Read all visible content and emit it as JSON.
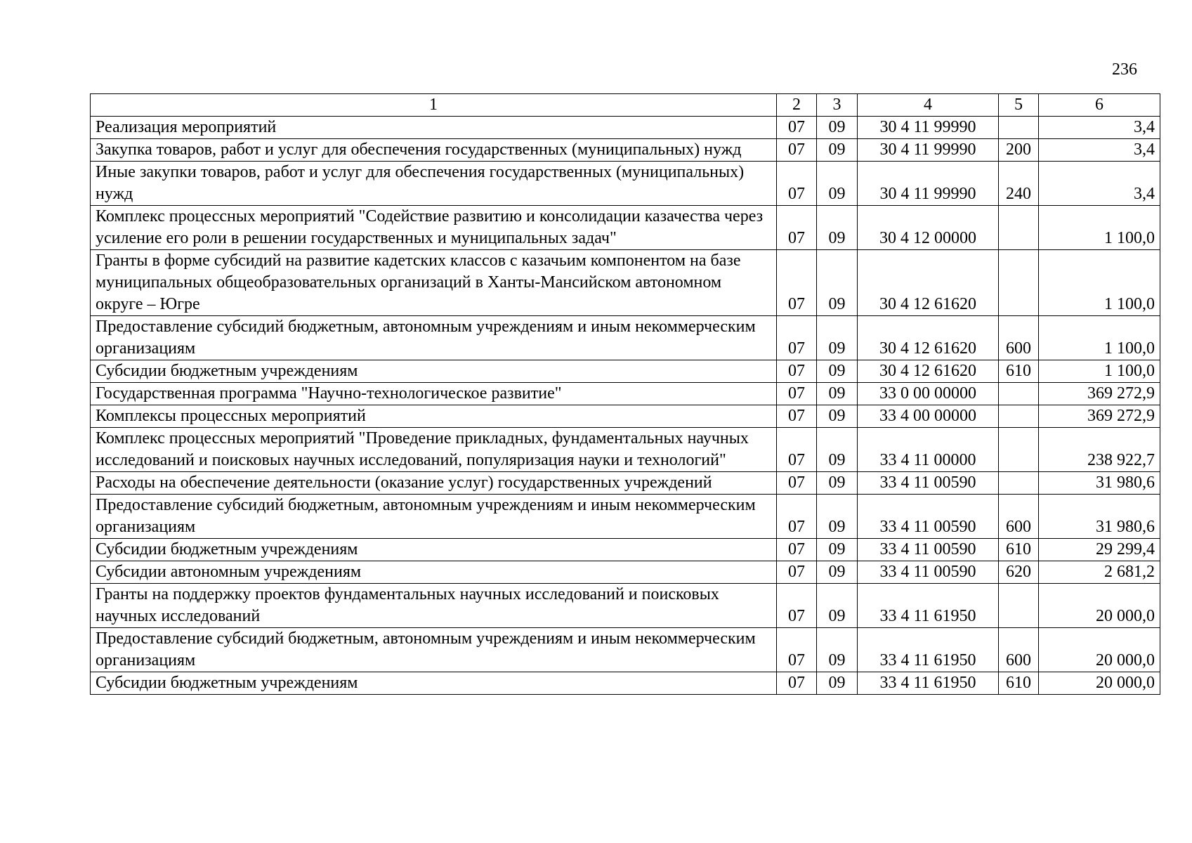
{
  "page_number": "236",
  "table": {
    "headers": [
      "1",
      "2",
      "3",
      "4",
      "5",
      "6"
    ],
    "rows": [
      {
        "name": "Реализация мероприятий",
        "c2": "07",
        "c3": "09",
        "c4": "30 4 11 99990",
        "c5": "",
        "c6": "3,4"
      },
      {
        "name": "Закупка товаров, работ и услуг для обеспечения государственных (муниципальных) нужд",
        "c2": "07",
        "c3": "09",
        "c4": "30 4 11 99990",
        "c5": "200",
        "c6": "3,4"
      },
      {
        "name": "Иные закупки товаров, работ и услуг для обеспечения государственных (муниципальных) нужд",
        "c2": "07",
        "c3": "09",
        "c4": "30 4 11 99990",
        "c5": "240",
        "c6": "3,4"
      },
      {
        "name": "Комплекс процессных мероприятий \"Содействие развитию и консолидации казачества через усиление его роли в решении государственных и муниципальных задач\"",
        "c2": "07",
        "c3": "09",
        "c4": "30 4 12 00000",
        "c5": "",
        "c6": "1 100,0"
      },
      {
        "name": "Гранты в форме субсидий на развитие кадетских классов с казачьим компонентом на базе муниципальных общеобразовательных организаций в Ханты-Мансийском автономном округе – Югре",
        "c2": "07",
        "c3": "09",
        "c4": "30 4 12 61620",
        "c5": "",
        "c6": "1 100,0"
      },
      {
        "name": "Предоставление субсидий бюджетным, автономным учреждениям и иным некоммерческим организациям",
        "c2": "07",
        "c3": "09",
        "c4": "30 4 12 61620",
        "c5": "600",
        "c6": "1 100,0"
      },
      {
        "name": "Субсидии бюджетным учреждениям",
        "c2": "07",
        "c3": "09",
        "c4": "30 4 12 61620",
        "c5": "610",
        "c6": "1 100,0"
      },
      {
        "name": "Государственная программа \"Научно-технологическое развитие\"",
        "c2": "07",
        "c3": "09",
        "c4": "33 0 00 00000",
        "c5": "",
        "c6": "369 272,9"
      },
      {
        "name": "Комплексы процессных мероприятий",
        "c2": "07",
        "c3": "09",
        "c4": "33 4 00 00000",
        "c5": "",
        "c6": "369 272,9"
      },
      {
        "name": "Комплекс процессных мероприятий \"Проведение прикладных, фундаментальных научных исследований и поисковых научных исследований, популяризация науки и технологий\"",
        "c2": "07",
        "c3": "09",
        "c4": "33 4 11 00000",
        "c5": "",
        "c6": "238 922,7"
      },
      {
        "name": "Расходы на обеспечение деятельности (оказание услуг) государственных учреждений",
        "c2": "07",
        "c3": "09",
        "c4": "33 4 11 00590",
        "c5": "",
        "c6": "31 980,6"
      },
      {
        "name": "Предоставление субсидий бюджетным, автономным учреждениям и иным некоммерческим организациям",
        "c2": "07",
        "c3": "09",
        "c4": "33 4 11 00590",
        "c5": "600",
        "c6": "31 980,6"
      },
      {
        "name": "Субсидии бюджетным учреждениям",
        "c2": "07",
        "c3": "09",
        "c4": "33 4 11 00590",
        "c5": "610",
        "c6": "29 299,4"
      },
      {
        "name": "Субсидии автономным учреждениям",
        "c2": "07",
        "c3": "09",
        "c4": "33 4 11 00590",
        "c5": "620",
        "c6": "2 681,2"
      },
      {
        "name": "Гранты на поддержку проектов фундаментальных научных исследований и поисковых научных исследований",
        "c2": "07",
        "c3": "09",
        "c4": "33 4 11 61950",
        "c5": "",
        "c6": "20 000,0"
      },
      {
        "name": "Предоставление субсидий бюджетным, автономным учреждениям и иным некоммерческим организациям",
        "c2": "07",
        "c3": "09",
        "c4": "33 4 11 61950",
        "c5": "600",
        "c6": "20 000,0"
      },
      {
        "name": "Субсидии бюджетным учреждениям",
        "c2": "07",
        "c3": "09",
        "c4": "33 4 11 61950",
        "c5": "610",
        "c6": "20 000,0"
      }
    ]
  }
}
